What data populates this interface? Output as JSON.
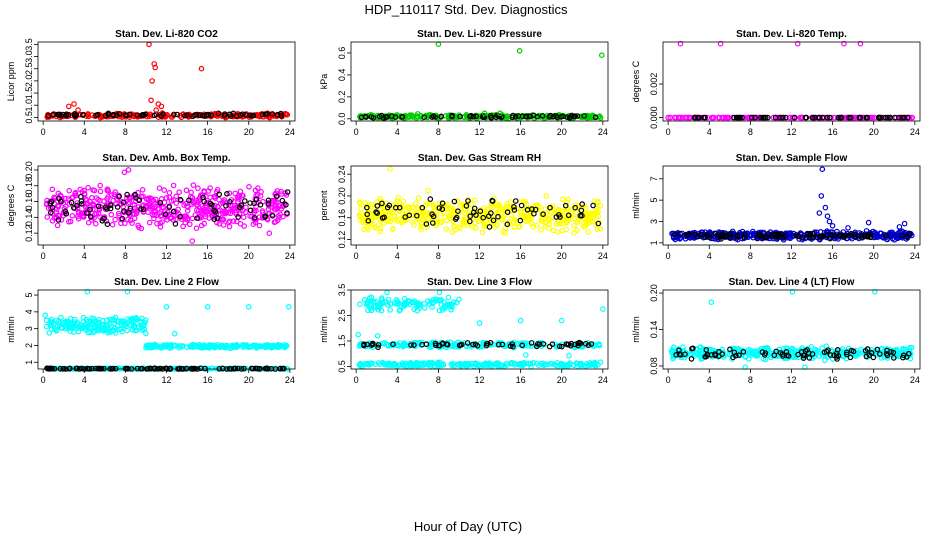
{
  "figure": {
    "title": "HDP_110117  Std. Dev. Diagnostics",
    "xlabel": "Hour of Day (UTC)"
  },
  "colors": {
    "background": "#ffffff",
    "axis": "#000000",
    "secondary_points": "#000000"
  },
  "chart_data": [
    {
      "id": "co2",
      "type": "scatter",
      "title": "Stan. Dev. Li-820 CO2",
      "ylabel": "Licor ppm",
      "color": "#ff0000",
      "xlim": [
        -0.5,
        24.5
      ],
      "ylim": [
        0.35,
        3.6
      ],
      "xticks": [
        0,
        4,
        8,
        12,
        16,
        20,
        24
      ],
      "yticks": [
        0.5,
        1.0,
        1.5,
        2.0,
        2.5,
        3.0,
        3.5
      ],
      "ytick_labels": [
        "0.5",
        "1.0",
        "1.5",
        "2.0",
        "2.5",
        "3.0",
        "3.5"
      ],
      "baseline": {
        "x_start": 0.3,
        "x_end": 23.8,
        "y_center": 0.58,
        "y_spread": 0.1,
        "count": 260
      },
      "secondary_baseline": {
        "x_start": 0.5,
        "x_end": 23.8,
        "y_center": 0.6,
        "y_spread": 0.08,
        "count": 70
      },
      "outliers": [
        {
          "x": 10.3,
          "y": 3.5
        },
        {
          "x": 10.6,
          "y": 2.0
        },
        {
          "x": 10.8,
          "y": 2.7
        },
        {
          "x": 10.9,
          "y": 2.55
        },
        {
          "x": 11.2,
          "y": 1.05
        },
        {
          "x": 11.5,
          "y": 0.95
        },
        {
          "x": 10.5,
          "y": 1.2
        },
        {
          "x": 15.4,
          "y": 2.5
        },
        {
          "x": 2.5,
          "y": 0.95
        },
        {
          "x": 3.0,
          "y": 1.05
        },
        {
          "x": 3.4,
          "y": 0.8
        },
        {
          "x": 11.0,
          "y": 0.8
        }
      ]
    },
    {
      "id": "pressure",
      "type": "scatter",
      "title": "Stan. Dev. Li-820 Pressure",
      "ylabel": "kPa",
      "color": "#00cc00",
      "xlim": [
        -0.5,
        24.5
      ],
      "ylim": [
        -0.02,
        0.7
      ],
      "xticks": [
        0,
        4,
        8,
        12,
        16,
        20,
        24
      ],
      "yticks": [
        0.0,
        0.2,
        0.4,
        0.6
      ],
      "ytick_labels": [
        "0.0",
        "0.2",
        "0.4",
        "0.6"
      ],
      "baseline": {
        "x_start": 0.3,
        "x_end": 23.8,
        "y_center": 0.02,
        "y_spread": 0.02,
        "count": 260
      },
      "secondary_baseline": {
        "x_start": 0.5,
        "x_end": 23.8,
        "y_center": 0.02,
        "y_spread": 0.015,
        "count": 70
      },
      "outliers": [
        {
          "x": 8.0,
          "y": 0.68
        },
        {
          "x": 15.9,
          "y": 0.62
        },
        {
          "x": 23.9,
          "y": 0.58
        },
        {
          "x": 12.5,
          "y": 0.05
        },
        {
          "x": 14.0,
          "y": 0.05
        },
        {
          "x": 6.0,
          "y": 0.045
        }
      ]
    },
    {
      "id": "temp",
      "type": "scatter",
      "title": "Stan. Dev. Li-820 Temp.",
      "ylabel": "degrees C",
      "color": "#ff00ff",
      "xlim": [
        -0.5,
        24.5
      ],
      "ylim": [
        -0.0002,
        0.0045
      ],
      "xticks": [
        0,
        4,
        8,
        12,
        16,
        20,
        24
      ],
      "yticks": [
        0.0,
        0.002
      ],
      "ytick_labels": [
        "0.000",
        "0.002"
      ],
      "baseline": {
        "x_start": 0.0,
        "x_end": 23.8,
        "y_center": 0.0,
        "y_spread": 0.0,
        "count": 150
      },
      "secondary_baseline": {
        "x_start": 0.5,
        "x_end": 23.8,
        "y_center": 0.0,
        "y_spread": 0.0,
        "count": 60
      },
      "outliers": [
        {
          "x": 0.0,
          "y": 0.0
        },
        {
          "x": 1.2,
          "y": 0.0044
        },
        {
          "x": 5.1,
          "y": 0.0044
        },
        {
          "x": 12.6,
          "y": 0.0044
        },
        {
          "x": 17.1,
          "y": 0.0044
        },
        {
          "x": 18.7,
          "y": 0.0044
        }
      ]
    },
    {
      "id": "ambbox",
      "type": "scatter",
      "title": "Stan. Dev. Amb. Box Temp.",
      "ylabel": "degrees C",
      "color": "#ff00ff",
      "xlim": [
        -0.5,
        24.5
      ],
      "ylim": [
        0.105,
        0.205
      ],
      "xticks": [
        0,
        4,
        8,
        12,
        16,
        20,
        24
      ],
      "yticks": [
        0.12,
        0.14,
        0.16,
        0.18,
        0.2
      ],
      "ytick_labels": [
        "0.12",
        "0.14",
        "0.16",
        "0.18",
        "0.20"
      ],
      "baseline": {
        "x_start": 0.3,
        "x_end": 23.8,
        "y_center": 0.153,
        "y_spread": 0.03,
        "count": 480
      },
      "secondary_baseline": {
        "x_start": 0.5,
        "x_end": 23.8,
        "y_center": 0.153,
        "y_spread": 0.025,
        "count": 80
      },
      "outliers": [
        {
          "x": 8.3,
          "y": 0.2
        },
        {
          "x": 7.9,
          "y": 0.197
        },
        {
          "x": 14.5,
          "y": 0.11
        },
        {
          "x": 22.0,
          "y": 0.12
        }
      ]
    },
    {
      "id": "rh",
      "type": "scatter",
      "title": "Stan. Dev. Gas Stream RH",
      "ylabel": "percent",
      "color": "#ffff00",
      "xlim": [
        -0.5,
        24.5
      ],
      "ylim": [
        0.11,
        0.255
      ],
      "xticks": [
        0,
        4,
        8,
        12,
        16,
        20,
        24
      ],
      "yticks": [
        0.12,
        0.16,
        0.2,
        0.24
      ],
      "ytick_labels": [
        "0.12",
        "0.16",
        "0.20",
        "0.24"
      ],
      "baseline": {
        "x_start": 0.3,
        "x_end": 23.8,
        "y_center": 0.165,
        "y_spread": 0.035,
        "count": 480
      },
      "secondary_baseline": {
        "x_start": 0.5,
        "x_end": 23.8,
        "y_center": 0.168,
        "y_spread": 0.028,
        "count": 70
      },
      "outliers": [
        {
          "x": 3.3,
          "y": 0.25
        },
        {
          "x": 7.0,
          "y": 0.21
        },
        {
          "x": 18.5,
          "y": 0.2
        }
      ]
    },
    {
      "id": "sampleflow",
      "type": "scatter",
      "title": "Stan. Dev. Sample Flow",
      "ylabel": "ml/min",
      "color": "#0000cc",
      "xlim": [
        -0.5,
        24.5
      ],
      "ylim": [
        0.8,
        8.2
      ],
      "xticks": [
        0,
        4,
        8,
        12,
        16,
        20,
        24
      ],
      "yticks": [
        1,
        3,
        5,
        7
      ],
      "ytick_labels": [
        "1",
        "3",
        "5",
        "7"
      ],
      "baseline": {
        "x_start": 0.3,
        "x_end": 23.8,
        "y_center": 1.7,
        "y_spread": 0.45,
        "count": 420
      },
      "secondary_baseline": {
        "x_start": 0.5,
        "x_end": 23.8,
        "y_center": 1.65,
        "y_spread": 0.3,
        "count": 90
      },
      "outliers": [
        {
          "x": 15.0,
          "y": 7.9
        },
        {
          "x": 14.9,
          "y": 5.4
        },
        {
          "x": 15.3,
          "y": 4.3
        },
        {
          "x": 15.5,
          "y": 3.5
        },
        {
          "x": 15.7,
          "y": 3.0
        },
        {
          "x": 14.7,
          "y": 3.8
        },
        {
          "x": 16.0,
          "y": 2.6
        },
        {
          "x": 19.5,
          "y": 2.9
        },
        {
          "x": 23.0,
          "y": 2.8
        },
        {
          "x": 22.5,
          "y": 2.5
        },
        {
          "x": 17.5,
          "y": 2.4
        }
      ]
    },
    {
      "id": "line2",
      "type": "scatter",
      "title": "Stan. Dev. Line 2 Flow",
      "ylabel": "ml/min",
      "color": "#00ffff",
      "xlim": [
        -0.5,
        24.5
      ],
      "ylim": [
        0.6,
        5.3
      ],
      "xticks": [
        0,
        4,
        8,
        12,
        16,
        20,
        24
      ],
      "yticks": [
        1,
        2,
        3,
        4,
        5
      ],
      "ytick_labels": [
        "1",
        "2",
        "3",
        "4",
        "5"
      ],
      "segments": [
        {
          "x_start": 0.3,
          "x_end": 10.0,
          "y_center": 3.2,
          "y_spread": 0.55,
          "count": 170
        },
        {
          "x_start": 10.0,
          "x_end": 23.8,
          "y_center": 1.95,
          "y_spread": 0.12,
          "count": 190
        },
        {
          "x_start": 0.3,
          "x_end": 23.8,
          "y_center": 0.62,
          "y_spread": 0.04,
          "count": 200
        }
      ],
      "secondary_baseline": {
        "x_start": 0.3,
        "x_end": 23.8,
        "y_center": 0.62,
        "y_spread": 0.03,
        "count": 110
      },
      "outliers": [
        {
          "x": 0.2,
          "y": 3.8
        },
        {
          "x": 4.3,
          "y": 5.2
        },
        {
          "x": 8.2,
          "y": 5.2
        },
        {
          "x": 12.0,
          "y": 4.3
        },
        {
          "x": 16.0,
          "y": 4.3
        },
        {
          "x": 20.0,
          "y": 4.3
        },
        {
          "x": 23.9,
          "y": 4.3
        },
        {
          "x": 12.8,
          "y": 2.7
        }
      ]
    },
    {
      "id": "line3",
      "type": "scatter",
      "title": "Stan. Dev. Line 3 Flow",
      "ylabel": "ml/min",
      "color": "#00ffff",
      "xlim": [
        -0.5,
        24.5
      ],
      "ylim": [
        0.4,
        3.5
      ],
      "xticks": [
        0,
        4,
        8,
        12,
        16,
        20,
        24
      ],
      "yticks": [
        0.5,
        1.5,
        2.5,
        3.5
      ],
      "ytick_labels": [
        "0.5",
        "1.5",
        "2.5",
        "3.5"
      ],
      "segments": [
        {
          "x_start": 0.3,
          "x_end": 10.0,
          "y_center": 2.95,
          "y_spread": 0.3,
          "count": 110
        },
        {
          "x_start": 0.3,
          "x_end": 23.8,
          "y_center": 1.35,
          "y_spread": 0.12,
          "count": 210
        },
        {
          "x_start": 0.3,
          "x_end": 23.8,
          "y_center": 0.58,
          "y_spread": 0.1,
          "count": 230
        }
      ],
      "secondary_baseline": {
        "x_start": 0.5,
        "x_end": 23.8,
        "y_center": 1.35,
        "y_spread": 0.12,
        "count": 60
      },
      "outliers": [
        {
          "x": 0.2,
          "y": 1.75
        },
        {
          "x": 1.5,
          "y": 2.7
        },
        {
          "x": 2.1,
          "y": 1.7
        },
        {
          "x": 3.0,
          "y": 3.4
        },
        {
          "x": 8.1,
          "y": 3.4
        },
        {
          "x": 12.0,
          "y": 2.2
        },
        {
          "x": 16.0,
          "y": 2.3
        },
        {
          "x": 20.0,
          "y": 2.3
        },
        {
          "x": 24.0,
          "y": 2.75
        },
        {
          "x": 16.5,
          "y": 0.95
        },
        {
          "x": 20.7,
          "y": 0.92
        }
      ]
    },
    {
      "id": "line4",
      "type": "scatter",
      "title": "Stan. Dev. Line 4 (LT) Flow",
      "ylabel": "ml/min",
      "color": "#00ffff",
      "xlim": [
        -0.5,
        24.5
      ],
      "ylim": [
        0.075,
        0.205
      ],
      "xticks": [
        0,
        4,
        8,
        12,
        16,
        20,
        24
      ],
      "yticks": [
        0.08,
        0.14,
        0.2
      ],
      "ytick_labels": [
        "0.08",
        "0.14",
        "0.20"
      ],
      "baseline": {
        "x_start": 0.3,
        "x_end": 23.8,
        "y_center": 0.101,
        "y_spread": 0.012,
        "count": 360
      },
      "secondary_baseline": {
        "x_start": 0.5,
        "x_end": 23.8,
        "y_center": 0.1,
        "y_spread": 0.01,
        "count": 80
      },
      "outliers": [
        {
          "x": 4.2,
          "y": 0.185
        },
        {
          "x": 12.1,
          "y": 0.202
        },
        {
          "x": 20.1,
          "y": 0.202
        },
        {
          "x": 7.5,
          "y": 0.078
        },
        {
          "x": 13.3,
          "y": 0.078
        }
      ]
    }
  ]
}
